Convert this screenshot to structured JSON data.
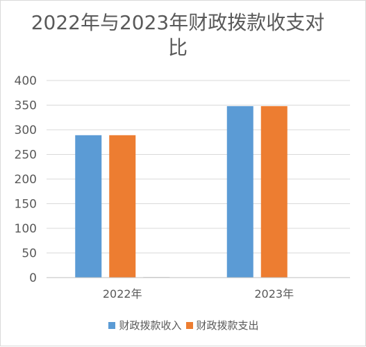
{
  "chart_data": {
    "type": "bar",
    "title": "2022年与2023年财政拨款收支对比",
    "categories": [
      "2022年",
      "2023年"
    ],
    "series": [
      {
        "name": "财政拨款收入",
        "color": "#5b9bd5",
        "values": [
          289,
          348
        ]
      },
      {
        "name": "财政拨款支出",
        "color": "#ed7d31",
        "values": [
          289,
          348
        ]
      },
      {
        "name": "",
        "color": "#a5a5a5",
        "values": [
          1,
          0
        ]
      }
    ],
    "yticks": [
      0,
      50,
      100,
      150,
      200,
      250,
      300,
      350,
      400
    ],
    "ylim": [
      0,
      400
    ],
    "grid": true,
    "legend_position": "bottom"
  }
}
